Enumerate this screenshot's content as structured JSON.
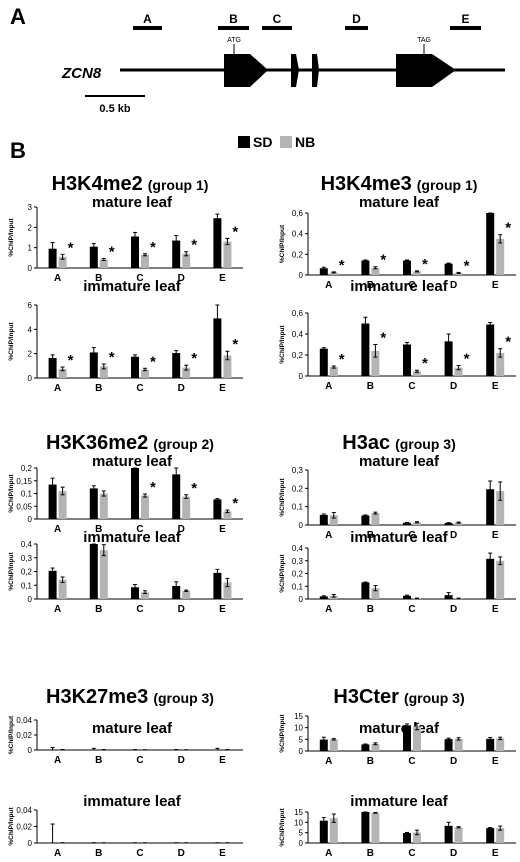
{
  "panelA": {
    "letter": "A",
    "gene": "ZCN8",
    "scale_label": "0.5 kb",
    "regions": [
      "A",
      "B",
      "C",
      "D",
      "E"
    ],
    "atg": "ATG",
    "tag": "TAG"
  },
  "panelB": {
    "letter": "B",
    "legend": [
      {
        "name": "SD",
        "color": "#000000"
      },
      {
        "name": "NB",
        "color": "#b4b4b4"
      }
    ]
  },
  "chart_data": [
    {
      "type": "bar",
      "title": "H3K4me2",
      "group": "(group 1)",
      "subtitle": "mature leaf",
      "ylabel": "%ChIP/Input",
      "categories": [
        "A",
        "B",
        "C",
        "D",
        "E"
      ],
      "ylim": [
        0,
        3
      ],
      "yticks": [
        "0",
        "1",
        "2",
        "3"
      ],
      "series": [
        {
          "name": "SD",
          "values": [
            0.95,
            1.05,
            1.55,
            1.35,
            2.45
          ],
          "errors": [
            0.3,
            0.15,
            0.2,
            0.25,
            0.2
          ]
        },
        {
          "name": "NB",
          "values": [
            0.55,
            0.42,
            0.65,
            0.7,
            1.3
          ],
          "errors": [
            0.12,
            0.05,
            0.05,
            0.1,
            0.15
          ]
        }
      ],
      "significant": [
        true,
        true,
        true,
        true,
        true
      ]
    },
    {
      "type": "bar",
      "title": "",
      "group": "",
      "subtitle": "immature leaf",
      "ylabel": "%ChIP/Input",
      "categories": [
        "A",
        "B",
        "C",
        "D",
        "E"
      ],
      "ylim": [
        0,
        6
      ],
      "yticks": [
        "0",
        "2",
        "4",
        "6"
      ],
      "series": [
        {
          "name": "SD",
          "values": [
            1.65,
            2.1,
            1.75,
            2.05,
            4.9
          ],
          "errors": [
            0.25,
            0.4,
            0.15,
            0.2,
            1.1
          ]
        },
        {
          "name": "NB",
          "values": [
            0.75,
            0.95,
            0.7,
            0.85,
            1.85
          ],
          "errors": [
            0.15,
            0.2,
            0.1,
            0.2,
            0.35
          ]
        }
      ],
      "significant": [
        true,
        true,
        true,
        true,
        true
      ]
    },
    {
      "type": "bar",
      "title": "H3K4me3",
      "group": "(group 1)",
      "subtitle": "mature leaf",
      "ylabel": "%ChIP/Input",
      "categories": [
        "A",
        "B",
        "C",
        "D",
        "E"
      ],
      "ylim": [
        0,
        0.6
      ],
      "yticks": [
        "0",
        "0,2",
        "0,4",
        "0,6"
      ],
      "series": [
        {
          "name": "SD",
          "values": [
            0.065,
            0.14,
            0.14,
            0.11,
            0.63
          ],
          "errors": [
            0.01,
            0.005,
            0.005,
            0.005,
            0.01
          ]
        },
        {
          "name": "NB",
          "values": [
            0.025,
            0.07,
            0.035,
            0.02,
            0.35
          ],
          "errors": [
            0.005,
            0.01,
            0.005,
            0.005,
            0.04
          ]
        }
      ],
      "significant": [
        true,
        true,
        true,
        true,
        true
      ]
    },
    {
      "type": "bar",
      "title": "",
      "group": "",
      "subtitle": "immature leaf",
      "ylabel": "%ChIP/Input",
      "categories": [
        "A",
        "B",
        "C",
        "D",
        "E"
      ],
      "ylim": [
        0,
        0.6
      ],
      "yticks": [
        "0",
        "0,2",
        "0,4",
        "0,6"
      ],
      "series": [
        {
          "name": "SD",
          "values": [
            0.26,
            0.5,
            0.3,
            0.33,
            0.49
          ],
          "errors": [
            0.01,
            0.06,
            0.02,
            0.07,
            0.02
          ]
        },
        {
          "name": "NB",
          "values": [
            0.085,
            0.24,
            0.045,
            0.08,
            0.22
          ],
          "errors": [
            0.01,
            0.06,
            0.01,
            0.02,
            0.04
          ]
        }
      ],
      "significant": [
        true,
        true,
        true,
        true,
        true
      ]
    },
    {
      "type": "bar",
      "title": "H3K36me2",
      "group": "(group 2)",
      "subtitle": "mature leaf",
      "ylabel": "%ChIP/Input",
      "categories": [
        "A",
        "B",
        "C",
        "D",
        "E"
      ],
      "ylim": [
        0,
        0.2
      ],
      "yticks": [
        "0",
        "0,05",
        "0,1",
        "0,15",
        "0,2"
      ],
      "series": [
        {
          "name": "SD",
          "values": [
            0.135,
            0.12,
            0.225,
            0.175,
            0.077
          ],
          "errors": [
            0.025,
            0.01,
            0.015,
            0.03,
            0.003
          ]
        },
        {
          "name": "NB",
          "values": [
            0.11,
            0.1,
            0.092,
            0.088,
            0.03
          ],
          "errors": [
            0.015,
            0.01,
            0.006,
            0.007,
            0.005
          ]
        }
      ],
      "significant": [
        false,
        false,
        true,
        true,
        true
      ]
    },
    {
      "type": "bar",
      "title": "",
      "group": "",
      "subtitle": "immature leaf",
      "ylabel": "%ChIP/Input",
      "categories": [
        "A",
        "B",
        "C",
        "D",
        "E"
      ],
      "ylim": [
        0,
        0.4
      ],
      "yticks": [
        "0",
        "0,1",
        "0,2",
        "0,3",
        "0,4"
      ],
      "series": [
        {
          "name": "SD",
          "values": [
            0.205,
            0.4,
            0.085,
            0.095,
            0.19
          ],
          "errors": [
            0.02,
            0.01,
            0.02,
            0.03,
            0.025
          ]
        },
        {
          "name": "NB",
          "values": [
            0.14,
            0.355,
            0.05,
            0.06,
            0.12
          ],
          "errors": [
            0.02,
            0.04,
            0.01,
            0.005,
            0.03
          ]
        }
      ],
      "significant": [
        false,
        false,
        false,
        false,
        false
      ]
    },
    {
      "type": "bar",
      "title": "H3ac",
      "group": "(group 3)",
      "subtitle": "mature leaf",
      "ylabel": "%ChIP/Input",
      "categories": [
        "A",
        "B",
        "C",
        "D",
        "E"
      ],
      "ylim": [
        0,
        0.3
      ],
      "yticks": [
        "0",
        "0,1",
        "0,2",
        "0,3"
      ],
      "series": [
        {
          "name": "SD",
          "values": [
            0.055,
            0.052,
            0.012,
            0.011,
            0.195
          ],
          "errors": [
            0.005,
            0.003,
            0.002,
            0.002,
            0.045
          ]
        },
        {
          "name": "NB",
          "values": [
            0.053,
            0.065,
            0.015,
            0.013,
            0.185
          ],
          "errors": [
            0.015,
            0.005,
            0.003,
            0.003,
            0.05
          ]
        }
      ],
      "significant": [
        false,
        false,
        false,
        false,
        false
      ]
    },
    {
      "type": "bar",
      "title": "",
      "group": "",
      "subtitle": "immature leaf",
      "ylabel": "%ChIP/Input",
      "categories": [
        "A",
        "B",
        "C",
        "D",
        "E"
      ],
      "ylim": [
        0,
        0.4
      ],
      "yticks": [
        "0",
        "0,1",
        "0,2",
        "0,3",
        "0,4"
      ],
      "series": [
        {
          "name": "SD",
          "values": [
            0.02,
            0.13,
            0.025,
            0.03,
            0.315
          ],
          "errors": [
            0.005,
            0.003,
            0.005,
            0.02,
            0.045
          ]
        },
        {
          "name": "NB",
          "values": [
            0.025,
            0.085,
            0.005,
            0.005,
            0.3
          ],
          "errors": [
            0.01,
            0.02,
            0.002,
            0.002,
            0.03
          ]
        }
      ],
      "significant": [
        false,
        false,
        false,
        false,
        false
      ]
    },
    {
      "type": "bar",
      "title": "H3K27me3",
      "group": "(group 3)",
      "subtitle": "mature leaf",
      "ylabel": "%ChIP/Input",
      "categories": [
        "A",
        "B",
        "C",
        "D",
        "E"
      ],
      "ylim": [
        0,
        0.04
      ],
      "yticks": [
        "0",
        "0,02",
        "0,04"
      ],
      "series": [
        {
          "name": "SD",
          "values": [
            0.0003,
            0.0002,
            0.0001,
            0.0001,
            0.0002
          ],
          "errors": [
            0.003,
            0.002,
            0.0005,
            0.0005,
            0.002
          ]
        },
        {
          "name": "NB",
          "values": [
            0.0002,
            0.0001,
            0.0001,
            0.0001,
            0.0001
          ],
          "errors": [
            0.0005,
            0.0005,
            0.0003,
            0.0003,
            0.0005
          ]
        }
      ],
      "significant": [
        false,
        false,
        false,
        false,
        false
      ]
    },
    {
      "type": "bar",
      "title": "",
      "group": "",
      "subtitle": "immature leaf",
      "ylabel": "%ChIP/Input",
      "categories": [
        "A",
        "B",
        "C",
        "D",
        "E"
      ],
      "ylim": [
        0,
        0.04
      ],
      "yticks": [
        "0",
        "0,02",
        "0,04"
      ],
      "series": [
        {
          "name": "SD",
          "values": [
            0.0005,
            0.0001,
            0.0001,
            0.0001,
            0.0001
          ],
          "errors": [
            0.0225,
            0.0003,
            0.0002,
            0.0002,
            0.0002
          ]
        },
        {
          "name": "NB",
          "values": [
            0.0001,
            0.0001,
            0.0001,
            0.0001,
            0.0001
          ],
          "errors": [
            0.0003,
            0.0002,
            0.0002,
            0.0002,
            0.0002
          ]
        }
      ],
      "significant": [
        false,
        false,
        false,
        false,
        false
      ]
    },
    {
      "type": "bar",
      "title": "H3Cter",
      "group": "(group 3)",
      "subtitle": "mature leaf",
      "ylabel": "%ChIP/Input",
      "categories": [
        "A",
        "B",
        "C",
        "D",
        "E"
      ],
      "ylim": [
        0,
        15
      ],
      "yticks": [
        "0",
        "5",
        "10",
        "15"
      ],
      "series": [
        {
          "name": "SD",
          "values": [
            4.9,
            2.8,
            11.0,
            5.1,
            5.2
          ],
          "errors": [
            1.0,
            0.2,
            0.6,
            0.4,
            0.6
          ]
        },
        {
          "name": "NB",
          "values": [
            5.0,
            3.1,
            10.5,
            5.2,
            5.4
          ],
          "errors": [
            0.3,
            0.4,
            1.4,
            0.5,
            0.5
          ]
        }
      ],
      "significant": [
        false,
        false,
        false,
        false,
        false
      ]
    },
    {
      "type": "bar",
      "title": "",
      "group": "",
      "subtitle": "immature leaf",
      "ylabel": "%ChIP/Input",
      "categories": [
        "A",
        "B",
        "C",
        "D",
        "E"
      ],
      "ylim": [
        0,
        15
      ],
      "yticks": [
        "0",
        "5",
        "10",
        "15"
      ],
      "series": [
        {
          "name": "SD",
          "values": [
            10.8,
            15.1,
            4.8,
            8.3,
            7.2
          ],
          "errors": [
            1.5,
            0.2,
            0.3,
            1.7,
            0.3
          ]
        },
        {
          "name": "NB",
          "values": [
            12.0,
            14.6,
            5.1,
            7.6,
            7.2
          ],
          "errors": [
            2.0,
            0.2,
            1.1,
            0.3,
            1.0
          ]
        }
      ],
      "significant": [
        false,
        false,
        false,
        false,
        false
      ]
    }
  ]
}
